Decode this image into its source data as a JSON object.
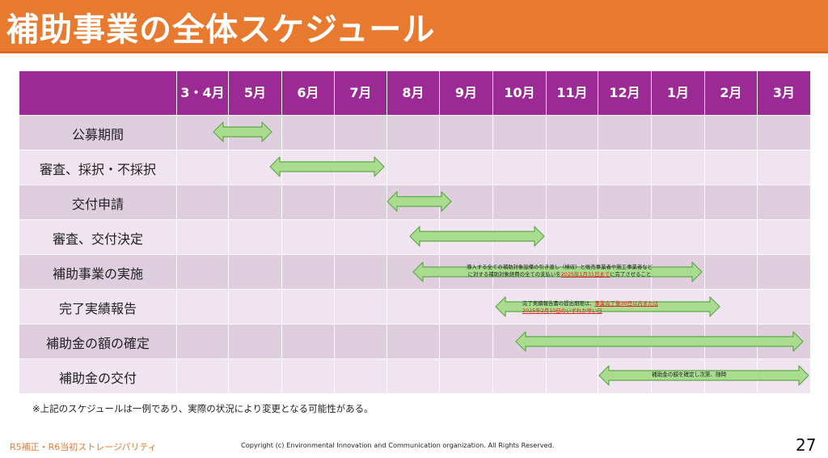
{
  "title": "補助事業の全体スケジュール",
  "months": [
    "3・4月",
    "5月",
    "6月",
    "7月",
    "8月",
    "9月",
    "10月",
    "11月",
    "12月",
    "1月",
    "2月",
    "3月"
  ],
  "rows": [
    {
      "label": "公募期間"
    },
    {
      "label": "審査、採択・不採択"
    },
    {
      "label": "交付申請"
    },
    {
      "label": "審査、交付決定"
    },
    {
      "label": "補助事業の実施"
    },
    {
      "label": "完了実績報告"
    },
    {
      "label": "補助金の額の確定"
    },
    {
      "label": "補助金の交付"
    }
  ],
  "notes": {
    "implementation_line1": "導入する全ての補助対象設備の引き渡し（検収）と販売事業者や施工事業者など",
    "implementation_line2_pre": "に対する補助対象経費の全ての支払いを",
    "implementation_line2_red": "2025年1月31日まで",
    "implementation_line2_post": "に完了させること",
    "report_line1_pre": "完了実績報告書の提出期限は、",
    "report_line1_red": "事業完了後30日以内または",
    "report_line2_red": "2025年2月10日のいずれか早い日",
    "grant": "補助金の額を確定し次第、随時"
  },
  "footnote": "※上記のスケジュールは一例であり、実際の状況により変更となる可能性がある。",
  "footer_left": "R5補正・R6当初ストレージパリティ",
  "copyright": "Copyright (c) Environmental Innovation and Communication organization. All Rights Reserved.",
  "page_number": "27",
  "colors": {
    "title_bar": "#e87a30",
    "header": "#9c2a94",
    "row_dark": "#decede",
    "row_light": "#efe4ef",
    "arrow_fill": "#a9dc8f",
    "arrow_stroke": "#5fa84a",
    "emphasis": "#e02020"
  }
}
